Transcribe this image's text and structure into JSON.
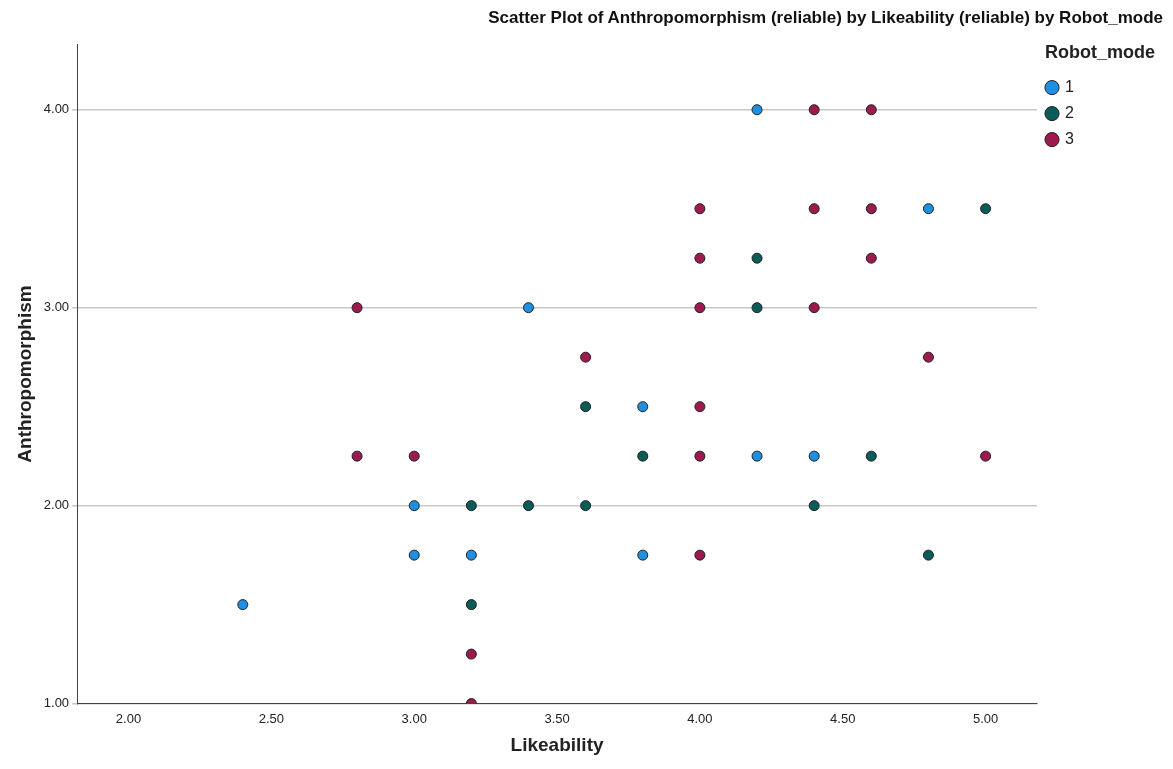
{
  "chart_data": {
    "type": "scatter",
    "title": "Scatter Plot of Anthropomorphism (reliable) by Likeability (reliable) by Robot_mode",
    "xlabel": "Likeability",
    "ylabel": "Anthropomorphism",
    "legend_title": "Robot_mode",
    "legend": "top right",
    "grid": "y",
    "marker": "circle",
    "xlim": [
      1.82,
      5.18
    ],
    "xticks": [
      {
        "value": 2,
        "label": "2.00"
      },
      {
        "value": 2.5,
        "label": "2.50"
      },
      {
        "value": 3,
        "label": "3.00"
      },
      {
        "value": 3.5,
        "label": "3.50"
      },
      {
        "value": 4,
        "label": "4.00"
      },
      {
        "value": 4.5,
        "label": "4.50"
      },
      {
        "value": 5,
        "label": "5.00"
      }
    ],
    "ylim": [
      1,
      4.33
    ],
    "yticks": [
      {
        "value": 1,
        "label": "1.00"
      },
      {
        "value": 2,
        "label": "2.00"
      },
      {
        "value": 3,
        "label": "3.00"
      },
      {
        "value": 4,
        "label": "4.00"
      }
    ],
    "series": [
      {
        "name": "1",
        "color": "#1e8fe1",
        "x": [
          4.2,
          4.8,
          3.4,
          3.8,
          4.2,
          4.4,
          3.0,
          3.0,
          3.2,
          3.8,
          2.4
        ],
        "values": [
          4.0,
          3.5,
          3.0,
          2.5,
          2.25,
          2.25,
          2.0,
          1.75,
          1.75,
          1.75,
          1.5
        ]
      },
      {
        "name": "2",
        "color": "#0b5c58",
        "x": [
          5.0,
          4.2,
          4.2,
          3.6,
          3.8,
          4.6,
          3.2,
          3.4,
          3.6,
          4.4,
          4.8,
          3.2
        ],
        "values": [
          3.5,
          3.25,
          3.0,
          2.5,
          2.25,
          2.25,
          2.0,
          2.0,
          2.0,
          2.0,
          1.75,
          1.5
        ]
      },
      {
        "name": "3",
        "color": "#9c1a4e",
        "x": [
          4.4,
          4.6,
          4.0,
          4.4,
          4.6,
          4.0,
          4.6,
          2.8,
          4.0,
          4.4,
          3.6,
          4.8,
          4.0,
          2.8,
          3.0,
          4.0,
          5.0,
          4.0,
          3.2,
          3.2
        ],
        "values": [
          4.0,
          4.0,
          3.5,
          3.5,
          3.5,
          3.25,
          3.25,
          3.0,
          3.0,
          3.0,
          2.75,
          2.75,
          2.5,
          2.25,
          2.25,
          2.25,
          2.25,
          1.75,
          1.25,
          1.0
        ]
      }
    ]
  }
}
